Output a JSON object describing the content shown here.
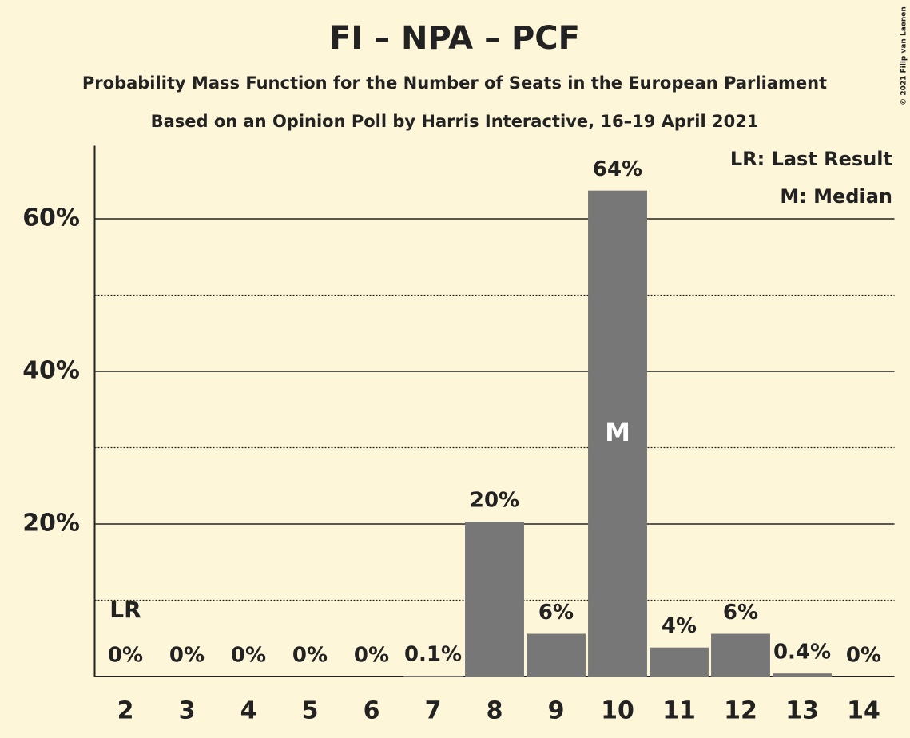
{
  "chart_data": {
    "type": "bar",
    "title": "FI – NPA – PCF",
    "subtitle": "Probability Mass Function for the Number of Seats in the European Parliament",
    "subtitle2": "Based on an Opinion Poll by Harris Interactive, 16–19 April 2021",
    "categories": [
      "2",
      "3",
      "4",
      "5",
      "6",
      "7",
      "8",
      "9",
      "10",
      "11",
      "12",
      "13",
      "14"
    ],
    "values": [
      0,
      0,
      0,
      0,
      0,
      0.1,
      20.3,
      5.6,
      63.7,
      3.8,
      5.6,
      0.4,
      0
    ],
    "value_labels": [
      "0%",
      "0%",
      "0%",
      "0%",
      "0%",
      "0.1%",
      "20%",
      "6%",
      "64%",
      "4%",
      "6%",
      "0.4%",
      "0%"
    ],
    "color": "#777777",
    "ylim": [
      0,
      70
    ],
    "yticks": [
      {
        "value": 20,
        "label": "20%"
      },
      {
        "value": 40,
        "label": "40%"
      },
      {
        "value": 60,
        "label": "60%"
      }
    ],
    "minor_yticks": [
      10,
      30,
      50
    ],
    "grid": true,
    "last_result": {
      "category": "2",
      "label": "LR"
    },
    "median": {
      "category": "10",
      "label": "M"
    },
    "legend": [
      "LR: Last Result",
      "M: Median"
    ],
    "legend_position": "top-right",
    "copyright": "© 2021 Filip van Laenen"
  }
}
